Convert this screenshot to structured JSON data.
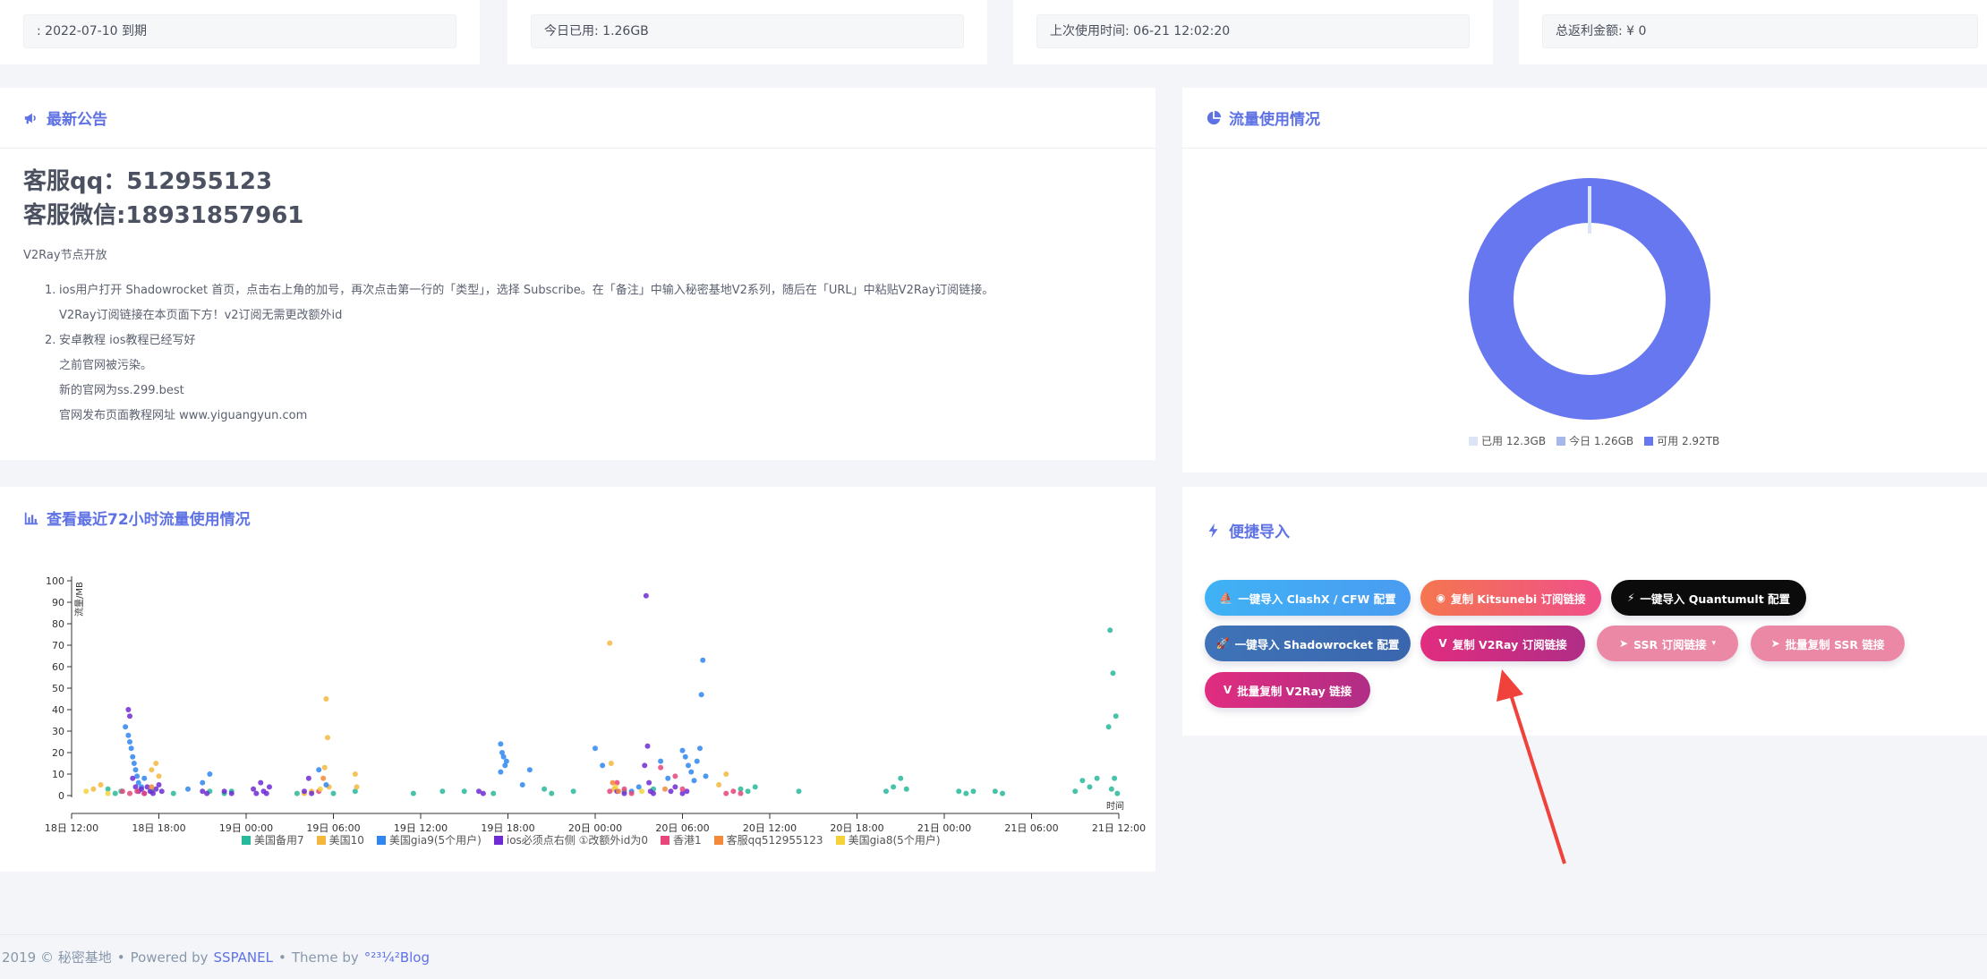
{
  "stats": [
    {
      "text": ": 2022-07-10 到期"
    },
    {
      "text": "今日已用: 1.26GB"
    },
    {
      "text": "上次使用时间: 06-21 12:02:20"
    },
    {
      "text": "总返利金额: ¥ 0"
    }
  ],
  "announcement": {
    "title": "最新公告",
    "qq": "客服qq：512955123",
    "wechat": "客服微信:18931857961",
    "intro": "V2Ray节点开放",
    "items": [
      {
        "num": "1.",
        "text": "ios用户打开 Shadowrocket 首页，点击右上角的加号，再次点击第一行的「类型」，选择 Subscribe。在「备注」中输入秘密基地V2系列，随后在「URL」中粘贴V2Ray订阅链接。",
        "sub": [
          "V2Ray订阅链接在本页面下方！v2订阅无需更改额外id"
        ]
      },
      {
        "num": "2.",
        "text": "安卓教程 ios教程已经写好",
        "sub": [
          "之前官网被污染。",
          "新的官网为ss.299.best",
          "官网发布页面教程网址 www.yiguangyun.com"
        ]
      }
    ]
  },
  "traffic": {
    "title": "流量使用情况",
    "legend": [
      {
        "label": "已用 12.3GB",
        "color": "#dbe3f7"
      },
      {
        "label": "今日 1.26GB",
        "color": "#a8b8ec"
      },
      {
        "label": "可用 2.92TB",
        "color": "#6777ef"
      }
    ]
  },
  "chart_data": {
    "type": "scatter",
    "title": "查看最近72小时流量使用情况",
    "ylabel": "流量/MB",
    "xlabel": "时间",
    "ylim": [
      0,
      100
    ],
    "yticks": [
      "0",
      "10",
      "20",
      "30",
      "40",
      "50",
      "60",
      "70",
      "80",
      "90",
      "100"
    ],
    "xticks": [
      "18日 12:00",
      "18日 18:00",
      "19日 00:00",
      "19日 06:00",
      "19日 12:00",
      "19日 18:00",
      "20日 00:00",
      "20日 06:00",
      "20日 12:00",
      "20日 18:00",
      "21日 00:00",
      "21日 06:00",
      "21日 12:00"
    ],
    "series": [
      {
        "name": "美国备用7",
        "color": "#26b99a",
        "points": [
          [
            2.5,
            3
          ],
          [
            3,
            1
          ],
          [
            3.4,
            2
          ],
          [
            5.5,
            2
          ],
          [
            7,
            1
          ],
          [
            9.5,
            2
          ],
          [
            10.5,
            1
          ],
          [
            11,
            2
          ],
          [
            15.5,
            1
          ],
          [
            18,
            1
          ],
          [
            19.5,
            2
          ],
          [
            23.5,
            1
          ],
          [
            25.5,
            2
          ],
          [
            27,
            2
          ],
          [
            29,
            1
          ],
          [
            32.5,
            3
          ],
          [
            33,
            1
          ],
          [
            34.5,
            2
          ],
          [
            38,
            2
          ],
          [
            40,
            3
          ],
          [
            46,
            3
          ],
          [
            46.5,
            2
          ],
          [
            47,
            4
          ],
          [
            50,
            2
          ],
          [
            56,
            2
          ],
          [
            56.5,
            4
          ],
          [
            57,
            8
          ],
          [
            57.4,
            3
          ],
          [
            61,
            2
          ],
          [
            61.5,
            1
          ],
          [
            62,
            2
          ],
          [
            63.5,
            2
          ],
          [
            64,
            1
          ],
          [
            69,
            2
          ],
          [
            69.5,
            7
          ],
          [
            70,
            4
          ],
          [
            70.5,
            8
          ],
          [
            71.4,
            77
          ],
          [
            71.6,
            57
          ],
          [
            71.8,
            37
          ],
          [
            71.3,
            32
          ],
          [
            71.5,
            3
          ],
          [
            71.7,
            8
          ],
          [
            71.9,
            1
          ]
        ]
      },
      {
        "name": "美国10",
        "color": "#f4b73d",
        "points": [
          [
            1.5,
            3
          ],
          [
            2,
            5
          ],
          [
            5.5,
            12
          ],
          [
            5.8,
            15
          ],
          [
            6,
            9
          ],
          [
            16,
            1
          ],
          [
            16.5,
            2
          ],
          [
            17.5,
            45
          ],
          [
            17.6,
            27
          ],
          [
            17.4,
            13
          ],
          [
            17.7,
            4
          ],
          [
            19.5,
            10
          ],
          [
            19.6,
            4
          ],
          [
            37,
            71
          ],
          [
            37.3,
            3
          ],
          [
            37.1,
            15
          ],
          [
            44.5,
            5
          ],
          [
            45,
            10
          ]
        ]
      },
      {
        "name": "美国gia9(5个用户)",
        "color": "#2e86f0",
        "points": [
          [
            3.7,
            32
          ],
          [
            3.9,
            28
          ],
          [
            4,
            25
          ],
          [
            4.1,
            22
          ],
          [
            4.2,
            18
          ],
          [
            4.3,
            15
          ],
          [
            4.4,
            12
          ],
          [
            4.5,
            9
          ],
          [
            4.6,
            6
          ],
          [
            4.8,
            4
          ],
          [
            5,
            8
          ],
          [
            8,
            3
          ],
          [
            9,
            6
          ],
          [
            9.5,
            10
          ],
          [
            17,
            12
          ],
          [
            17.5,
            5
          ],
          [
            29.5,
            24
          ],
          [
            29.6,
            20
          ],
          [
            29.7,
            18
          ],
          [
            29.8,
            14
          ],
          [
            29.5,
            11
          ],
          [
            29.9,
            16
          ],
          [
            31,
            5
          ],
          [
            31.5,
            12
          ],
          [
            36,
            22
          ],
          [
            36.5,
            14
          ],
          [
            38.5,
            2
          ],
          [
            39,
            4
          ],
          [
            40.5,
            16
          ],
          [
            41,
            8
          ],
          [
            42,
            21
          ],
          [
            42.2,
            18
          ],
          [
            42.4,
            14
          ],
          [
            42.6,
            11
          ],
          [
            42.8,
            7
          ],
          [
            43,
            16
          ],
          [
            43.2,
            22
          ],
          [
            43.4,
            63
          ],
          [
            43.3,
            47
          ],
          [
            43.6,
            9
          ]
        ]
      },
      {
        "name": "ios必须点右侧 ①改额外id为0",
        "color": "#6f2ad3",
        "points": [
          [
            4,
            37
          ],
          [
            3.9,
            40
          ],
          [
            4.2,
            8
          ],
          [
            4.4,
            4
          ],
          [
            4.6,
            2
          ],
          [
            4.8,
            3
          ],
          [
            5,
            1
          ],
          [
            5.2,
            4
          ],
          [
            5.4,
            2
          ],
          [
            5.6,
            1
          ],
          [
            5.8,
            3
          ],
          [
            6,
            5
          ],
          [
            6.2,
            2
          ],
          [
            9,
            2
          ],
          [
            9.3,
            1
          ],
          [
            10.5,
            2
          ],
          [
            11,
            1
          ],
          [
            12.5,
            3
          ],
          [
            12.7,
            1
          ],
          [
            13,
            6
          ],
          [
            13.2,
            2
          ],
          [
            13.4,
            1
          ],
          [
            13.6,
            4
          ],
          [
            16,
            2
          ],
          [
            16.3,
            8
          ],
          [
            16.5,
            1
          ],
          [
            28,
            2
          ],
          [
            28.3,
            1
          ],
          [
            37.5,
            2
          ],
          [
            38,
            1
          ],
          [
            39.5,
            93
          ],
          [
            39.6,
            23
          ],
          [
            39.4,
            14
          ],
          [
            39.7,
            6
          ],
          [
            39.8,
            2
          ],
          [
            40,
            1
          ],
          [
            41.2,
            2
          ],
          [
            41.5,
            4
          ],
          [
            42,
            1
          ],
          [
            42.3,
            2
          ]
        ]
      },
      {
        "name": "香港1",
        "color": "#e8457a",
        "points": [
          [
            3.5,
            2
          ],
          [
            4,
            1
          ],
          [
            4.5,
            2
          ],
          [
            5,
            1
          ],
          [
            17,
            2
          ],
          [
            37,
            2
          ],
          [
            37.5,
            6
          ],
          [
            38,
            3
          ],
          [
            38.5,
            1
          ],
          [
            40.5,
            13
          ],
          [
            41.5,
            9
          ],
          [
            42,
            3
          ],
          [
            45,
            1
          ],
          [
            45.5,
            2
          ],
          [
            46,
            1
          ]
        ]
      },
      {
        "name": "客服qq512955123",
        "color": "#f28a3a",
        "points": [
          [
            5.5,
            4
          ],
          [
            17.3,
            8
          ],
          [
            37.2,
            6
          ],
          [
            37.6,
            2
          ],
          [
            40.8,
            3
          ]
        ]
      },
      {
        "name": "美国gia8(5个用户)",
        "color": "#f5d23a",
        "points": [
          [
            1,
            2
          ],
          [
            2.5,
            1
          ],
          [
            17.1,
            3
          ],
          [
            37.4,
            4
          ],
          [
            39.2,
            2
          ]
        ]
      }
    ]
  },
  "quick_import": {
    "title": "便捷导入",
    "buttons": [
      {
        "label": "一键导入 ClashX / CFW 配置",
        "icon": "clash-icon"
      },
      {
        "label": "复制 Kitsunebi 订阅链接",
        "icon": "kitsunebi-icon"
      },
      {
        "label": "一键导入 Quantumult 配置",
        "icon": "quantumult-icon"
      },
      {
        "label": "一键导入 Shadowrocket 配置",
        "icon": "rocket-icon"
      },
      {
        "label": "复制 V2Ray 订阅链接",
        "icon": "v2ray-icon"
      },
      {
        "label": "SSR 订阅链接",
        "icon": "paper-plane-icon"
      },
      {
        "label": "批量复制 SSR 链接",
        "icon": "paper-plane-icon"
      },
      {
        "label": "批量复制 V2Ray 链接",
        "icon": "v2ray-icon"
      }
    ]
  },
  "footer": {
    "copyright": "2019 © 秘密基地",
    "powered_prefix": "Powered by",
    "powered_link": "SSPANEL",
    "theme_prefix": "Theme by",
    "theme_link": "°²³¼²Blog"
  }
}
